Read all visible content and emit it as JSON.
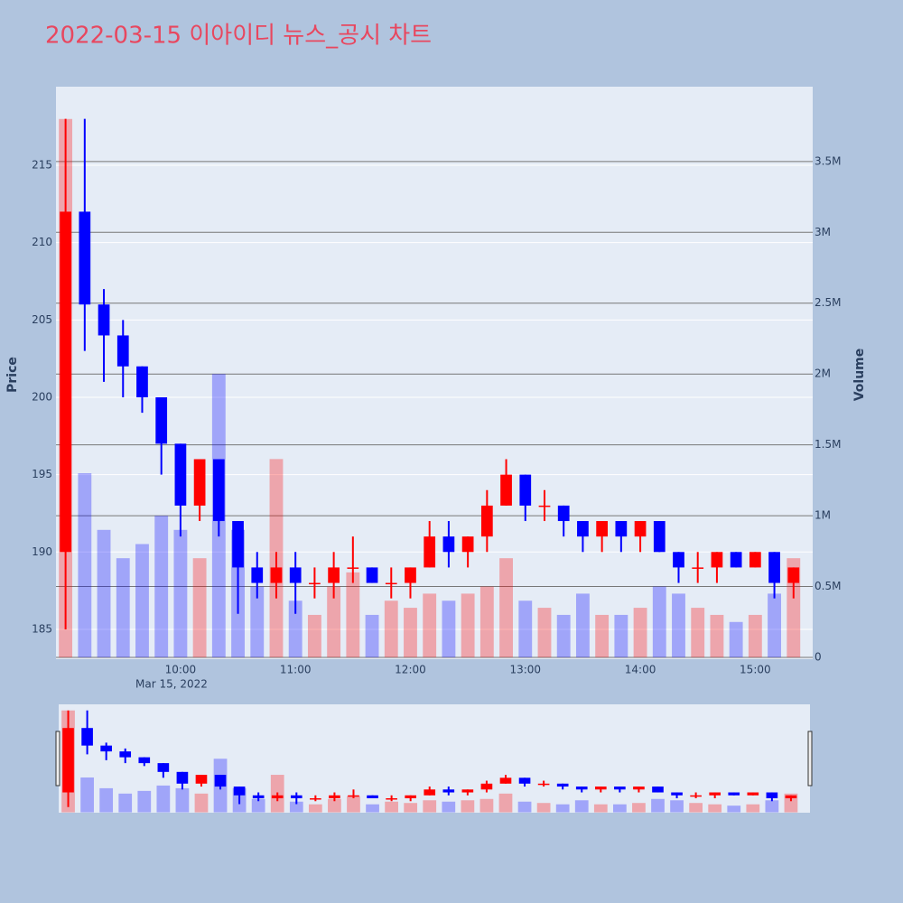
{
  "chart_data": {
    "type": "candlestick",
    "title": "2022-03-15 이아이디 뉴스_공시 차트",
    "y_label": "Price",
    "y2_label": "Volume",
    "x_date_label": "Mar 15, 2022",
    "increasing_color": "#ff0000",
    "decreasing_color": "#0000ff",
    "x": [
      "2022-03-15 09:00",
      "2022-03-15 09:10",
      "2022-03-15 09:20",
      "2022-03-15 09:30",
      "2022-03-15 09:40",
      "2022-03-15 09:50",
      "2022-03-15 10:00",
      "2022-03-15 10:10",
      "2022-03-15 10:20",
      "2022-03-15 10:30",
      "2022-03-15 10:40",
      "2022-03-15 10:50",
      "2022-03-15 11:00",
      "2022-03-15 11:10",
      "2022-03-15 11:20",
      "2022-03-15 11:30",
      "2022-03-15 11:40",
      "2022-03-15 11:50",
      "2022-03-15 12:00",
      "2022-03-15 12:10",
      "2022-03-15 12:20",
      "2022-03-15 12:30",
      "2022-03-15 12:40",
      "2022-03-15 12:50",
      "2022-03-15 13:00",
      "2022-03-15 13:10",
      "2022-03-15 13:20",
      "2022-03-15 13:30",
      "2022-03-15 13:40",
      "2022-03-15 13:50",
      "2022-03-15 14:00",
      "2022-03-15 14:10",
      "2022-03-15 14:20",
      "2022-03-15 14:30",
      "2022-03-15 14:40",
      "2022-03-15 14:50",
      "2022-03-15 15:00",
      "2022-03-15 15:10",
      "2022-03-15 15:20"
    ],
    "open": [
      190,
      212,
      206,
      204,
      202,
      200,
      197,
      193,
      196,
      192,
      189,
      188,
      189,
      188,
      188,
      189,
      189,
      188,
      188,
      189,
      191,
      190,
      191,
      193,
      195,
      193,
      193,
      192,
      191,
      192,
      191,
      192,
      190,
      189,
      189,
      190,
      189,
      190,
      188
    ],
    "high": [
      218,
      218,
      207,
      205,
      202,
      200,
      197,
      196,
      196,
      192,
      190,
      190,
      190,
      189,
      190,
      191,
      189,
      189,
      189,
      192,
      192,
      191,
      194,
      196,
      195,
      194,
      193,
      192,
      192,
      192,
      192,
      192,
      190,
      190,
      190,
      190,
      190,
      190,
      189
    ],
    "low": [
      185,
      203,
      201,
      200,
      199,
      195,
      191,
      192,
      191,
      186,
      187,
      187,
      186,
      187,
      187,
      188,
      188,
      187,
      187,
      189,
      189,
      189,
      190,
      193,
      192,
      192,
      191,
      190,
      190,
      190,
      190,
      190,
      188,
      188,
      188,
      189,
      189,
      187,
      187
    ],
    "close": [
      212,
      206,
      204,
      202,
      200,
      197,
      193,
      196,
      192,
      189,
      188,
      189,
      188,
      188,
      189,
      189,
      188,
      188,
      189,
      191,
      190,
      191,
      193,
      195,
      193,
      193,
      192,
      191,
      192,
      191,
      192,
      190,
      189,
      189,
      190,
      189,
      190,
      188,
      189
    ],
    "volume": [
      3800000,
      1300000,
      900000,
      700000,
      800000,
      1000000,
      900000,
      700000,
      2000000,
      900000,
      500000,
      1400000,
      400000,
      300000,
      500000,
      600000,
      300000,
      400000,
      350000,
      450000,
      400000,
      450000,
      500000,
      700000,
      400000,
      350000,
      300000,
      450000,
      300000,
      300000,
      350000,
      500000,
      450000,
      350000,
      300000,
      250000,
      300000,
      450000,
      700000
    ],
    "xlim": [
      "2022-03-15 08:55",
      "2022-03-15 15:30"
    ],
    "xticks": [
      {
        "value": "2022-03-15 10:00",
        "label": "10:00"
      },
      {
        "value": "2022-03-15 11:00",
        "label": "11:00"
      },
      {
        "value": "2022-03-15 12:00",
        "label": "12:00"
      },
      {
        "value": "2022-03-15 13:00",
        "label": "13:00"
      },
      {
        "value": "2022-03-15 14:00",
        "label": "14:00"
      },
      {
        "value": "2022-03-15 15:00",
        "label": "15:00"
      }
    ],
    "ylim": [
      183.07,
      220.08
    ],
    "yticks": [
      185,
      190,
      195,
      200,
      205,
      210,
      215
    ],
    "y2lim": [
      -12700,
      4028000
    ],
    "y2ticks": [
      0,
      {
        "value": 500000,
        "label": "0.5M"
      },
      {
        "value": 1000000,
        "label": "1M"
      },
      {
        "value": 1500000,
        "label": "1.5M"
      },
      {
        "value": 2000000,
        "label": "2M"
      },
      {
        "value": 2500000,
        "label": "2.5M"
      },
      {
        "value": 3000000,
        "label": "3M"
      },
      {
        "value": 3500000,
        "label": "3.5M"
      }
    ],
    "grid": true,
    "rangeslider": true
  }
}
